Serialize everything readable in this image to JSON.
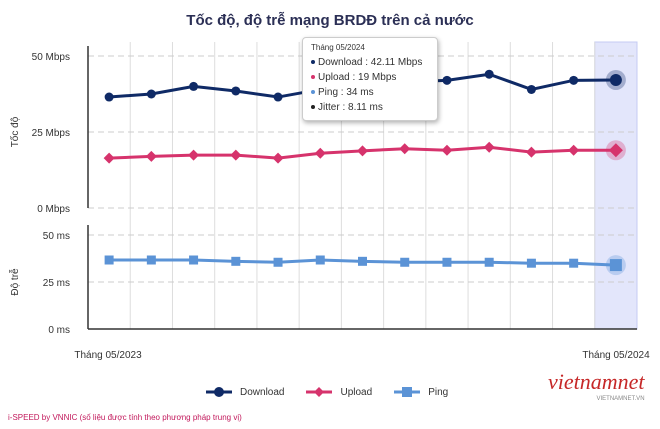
{
  "chart_data": {
    "type": "line",
    "title": "Tốc độ, độ trễ mạng BRDĐ trên cả nước",
    "x": [
      "Tháng 05/2023",
      "",
      "",
      "",
      "",
      "",
      "",
      "",
      "",
      "",
      "",
      "",
      "Tháng 05/2024"
    ],
    "x_tick_labels": [
      "Tháng 05/2023",
      "Tháng 05/2024"
    ],
    "panels": [
      {
        "ylabel": "Tốc độ",
        "ylim": [
          0,
          50
        ],
        "yticks": [
          "0 Mbps",
          "25 Mbps",
          "50 Mbps"
        ],
        "series": [
          {
            "name": "Download",
            "color": "#0f2a66",
            "marker": "circle",
            "values": [
              36.5,
              37.5,
              40,
              38.5,
              36.5,
              39,
              41,
              41.5,
              42,
              44,
              39,
              42,
              42.11
            ]
          },
          {
            "name": "Upload",
            "color": "#d6336c",
            "marker": "diamond",
            "values": [
              16.4,
              17,
              17.4,
              17.4,
              16.4,
              18,
              18.8,
              19.5,
              19,
              20,
              18.4,
              19,
              19
            ]
          }
        ]
      },
      {
        "ylabel": "Độ trễ",
        "ylim": [
          0,
          50
        ],
        "yticks": [
          "0 ms",
          "25 ms",
          "50 ms"
        ],
        "series": [
          {
            "name": "Ping",
            "color": "#5b93d6",
            "marker": "square",
            "values": [
              36.7,
              36.7,
              36.7,
              36,
              35.5,
              36.7,
              36,
              35.5,
              35.5,
              35.5,
              35,
              35,
              34
            ]
          }
        ]
      }
    ],
    "grid": true,
    "highlighted_index": 12,
    "legend_position": "bottom"
  },
  "tooltip": {
    "header": "Tháng 05/2024",
    "rows": [
      "Download : 42.11 Mbps",
      "Upload : 19 Mbps",
      "Ping : 34 ms",
      "Jitter : 8.11 ms"
    ],
    "colors": [
      "#0f2a66",
      "#d6336c",
      "#5b93d6",
      "#222222"
    ]
  },
  "legend": [
    "Download",
    "Upload",
    "Ping"
  ],
  "source": "i-SPEED by VNNIC (số liệu được tính theo phương pháp trung vị)",
  "logo": {
    "text": "vietnamnet",
    "sub": "VIETNAMNET.VN"
  }
}
